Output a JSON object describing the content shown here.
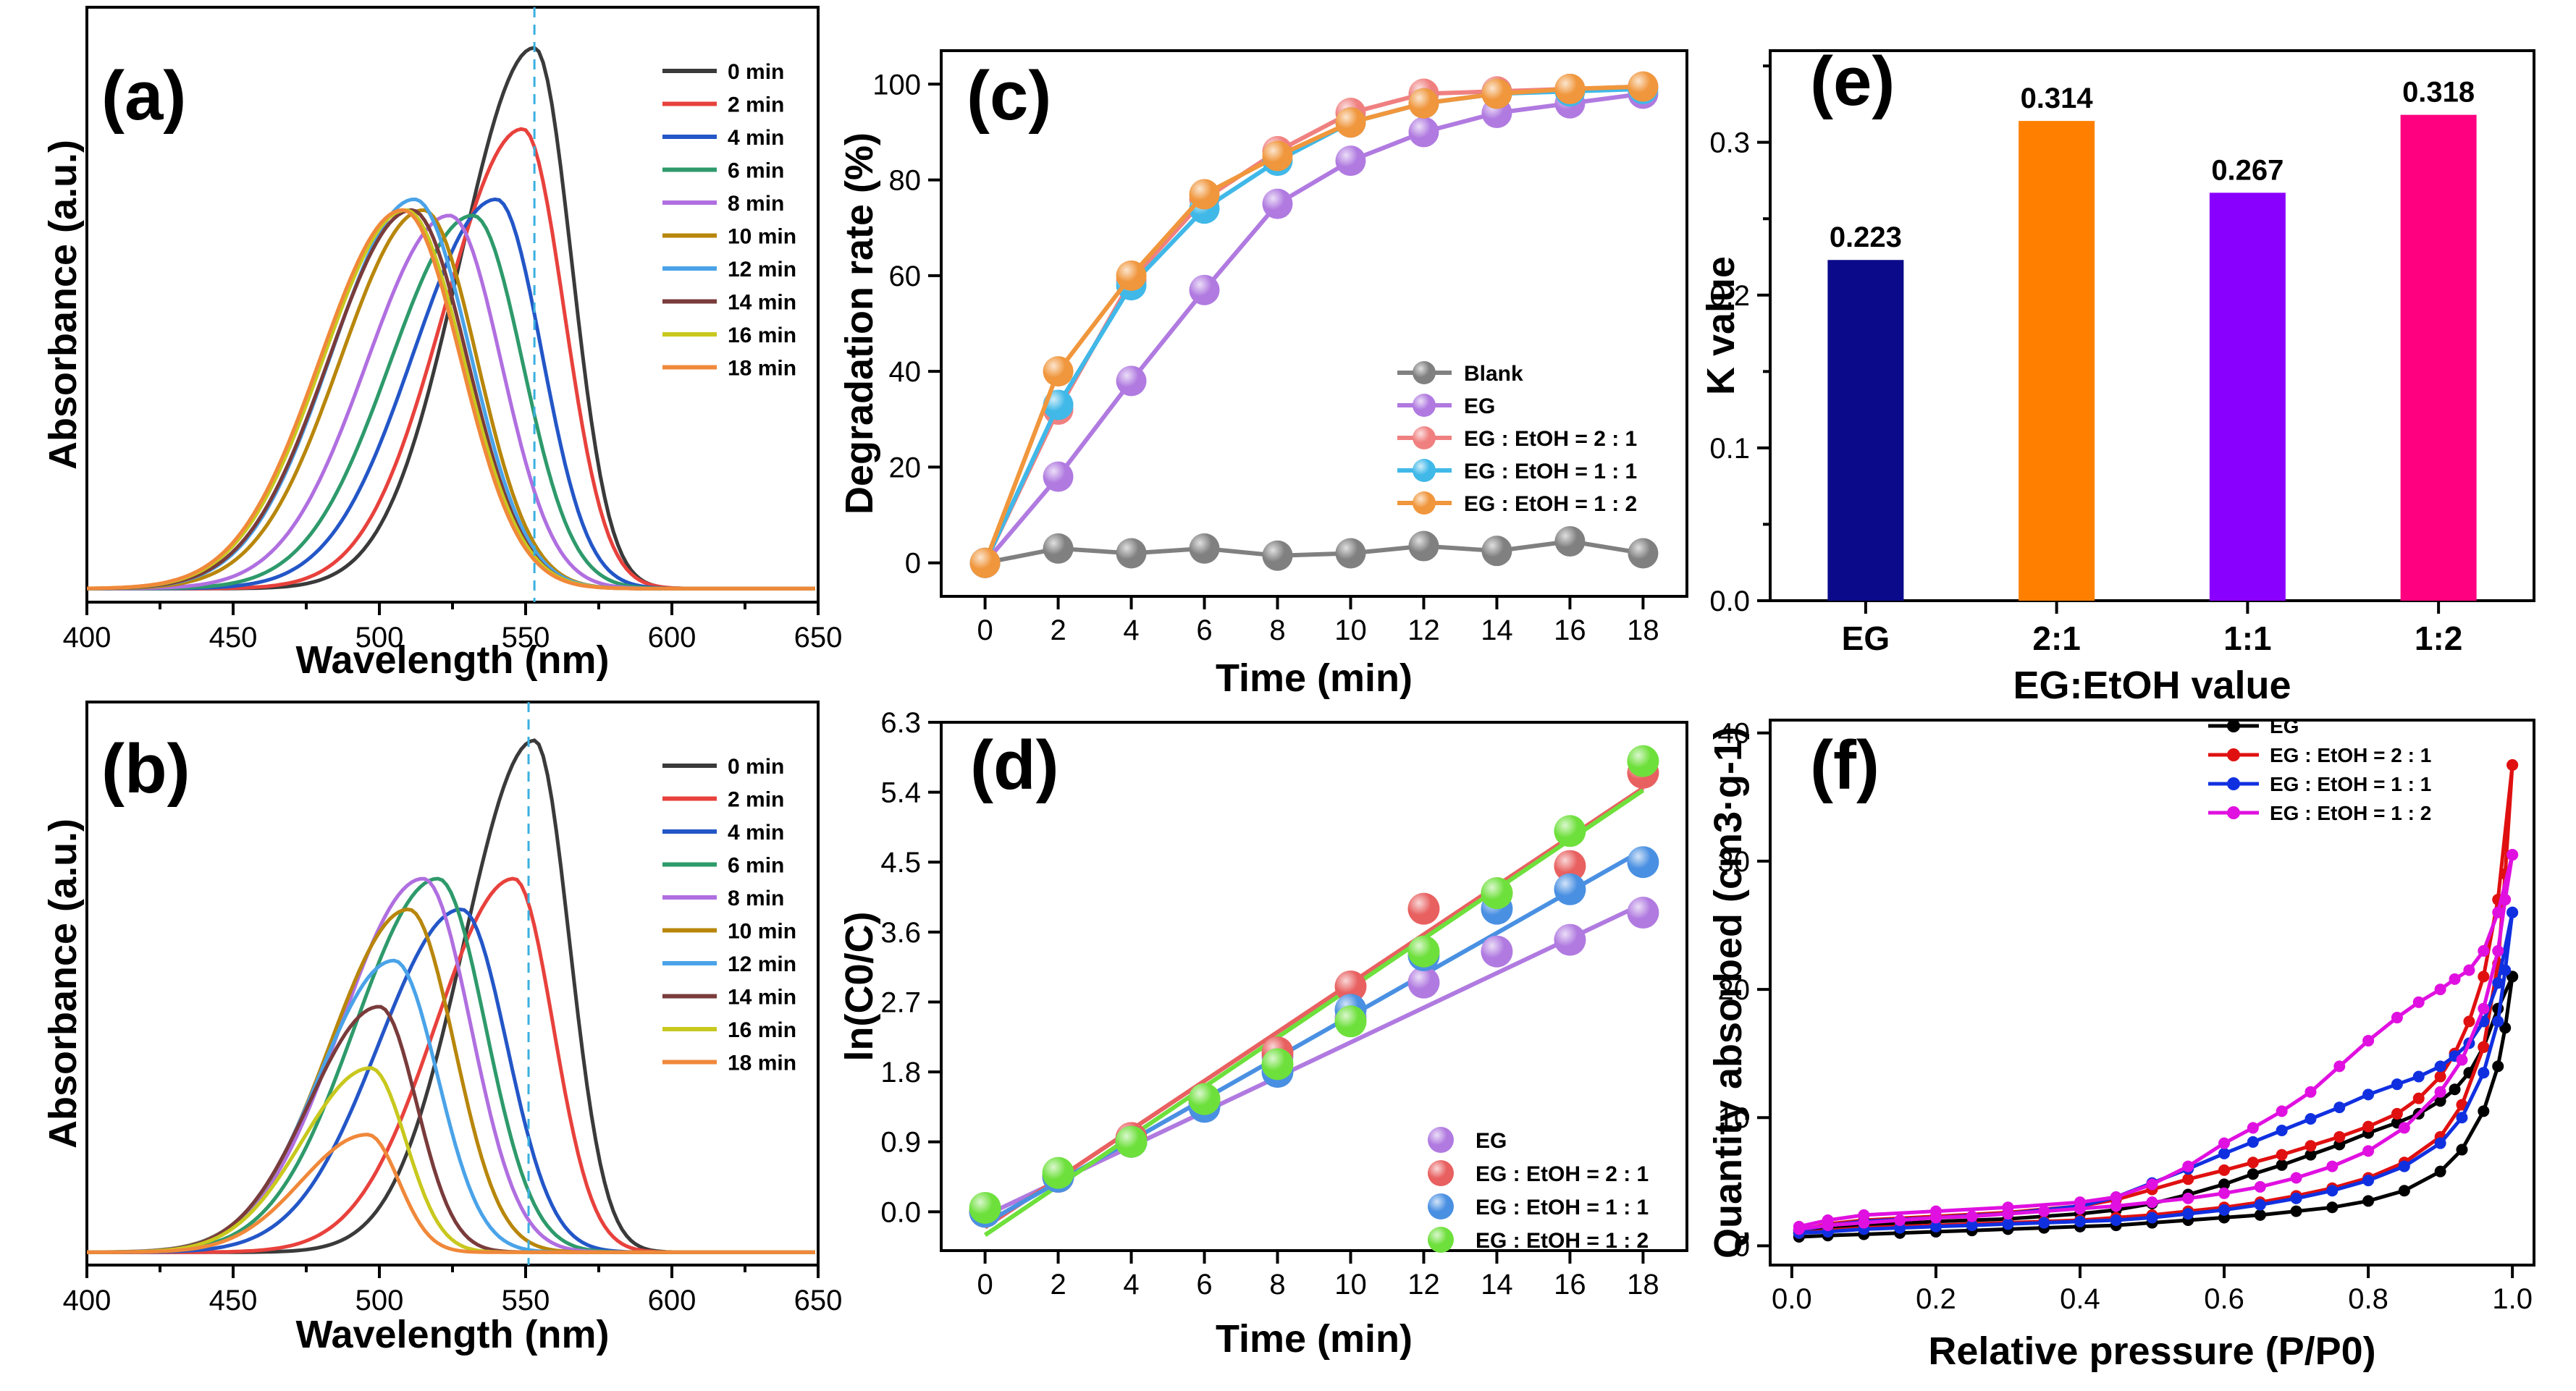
{
  "chart_data": [
    {
      "id": "a",
      "panel_label": "(a)",
      "type": "line",
      "xlabel": "Wavelength (nm)",
      "ylabel": "Absorbance (a.u.)",
      "xlim": [
        400,
        650
      ],
      "ylim": [
        0,
        1.1
      ],
      "xticks": [
        "400",
        "450",
        "500",
        "550",
        "600",
        "650"
      ],
      "marker_line_x": 553,
      "series": [
        {
          "name": "0 min",
          "color": "#3a3a3a",
          "peak": 553,
          "height": 1.0,
          "wl": 36,
          "wr": 18
        },
        {
          "name": "2 min",
          "color": "#e8413c",
          "peak": 549,
          "height": 0.85,
          "wl": 38,
          "wr": 20
        },
        {
          "name": "4 min",
          "color": "#2356c7",
          "peak": 540,
          "height": 0.72,
          "wl": 40,
          "wr": 22
        },
        {
          "name": "6 min",
          "color": "#2e9a6b",
          "peak": 532,
          "height": 0.69,
          "wl": 40,
          "wr": 24
        },
        {
          "name": "8 min",
          "color": "#b06fe0",
          "peak": 524,
          "height": 0.69,
          "wl": 40,
          "wr": 25
        },
        {
          "name": "10 min",
          "color": "#b8860b",
          "peak": 515,
          "height": 0.7,
          "wl": 40,
          "wr": 26
        },
        {
          "name": "12 min",
          "color": "#4aa3e8",
          "peak": 512,
          "height": 0.72,
          "wl": 40,
          "wr": 27
        },
        {
          "name": "14 min",
          "color": "#7a3b3b",
          "peak": 511,
          "height": 0.7,
          "wl": 40,
          "wr": 27
        },
        {
          "name": "16 min",
          "color": "#c8c81e",
          "peak": 509,
          "height": 0.7,
          "wl": 40,
          "wr": 28
        },
        {
          "name": "18 min",
          "color": "#f0883a",
          "peak": 508,
          "height": 0.7,
          "wl": 40,
          "wr": 28
        }
      ]
    },
    {
      "id": "b",
      "panel_label": "(b)",
      "type": "line",
      "xlabel": "Wavelength (nm)",
      "ylabel": "Absorbance (a.u.)",
      "xlim": [
        400,
        650
      ],
      "ylim": [
        0,
        1.1
      ],
      "xticks": [
        "400",
        "450",
        "500",
        "550",
        "600",
        "650"
      ],
      "marker_line_x": 551,
      "series": [
        {
          "name": "0 min",
          "color": "#3a3a3a",
          "peak": 553,
          "height": 1.0,
          "wl": 34,
          "wr": 17
        },
        {
          "name": "2 min",
          "color": "#e8413c",
          "peak": 546,
          "height": 0.73,
          "wl": 38,
          "wr": 19
        },
        {
          "name": "4 min",
          "color": "#2356c7",
          "peak": 528,
          "height": 0.67,
          "wl": 40,
          "wr": 22
        },
        {
          "name": "6 min",
          "color": "#2e9a6b",
          "peak": 520,
          "height": 0.73,
          "wl": 40,
          "wr": 23
        },
        {
          "name": "8 min",
          "color": "#b06fe0",
          "peak": 515,
          "height": 0.73,
          "wl": 40,
          "wr": 23
        },
        {
          "name": "10 min",
          "color": "#b8860b",
          "peak": 510,
          "height": 0.67,
          "wl": 38,
          "wr": 22
        },
        {
          "name": "12 min",
          "color": "#4aa3e8",
          "peak": 505,
          "height": 0.57,
          "wl": 36,
          "wr": 21
        },
        {
          "name": "14 min",
          "color": "#7a3b3b",
          "peak": 500,
          "height": 0.48,
          "wl": 34,
          "wr": 18
        },
        {
          "name": "16 min",
          "color": "#c8c81e",
          "peak": 497,
          "height": 0.36,
          "wl": 33,
          "wr": 17
        },
        {
          "name": "18 min",
          "color": "#f0883a",
          "peak": 496,
          "height": 0.23,
          "wl": 32,
          "wr": 15
        }
      ]
    },
    {
      "id": "c",
      "panel_label": "(c)",
      "type": "line",
      "xlabel": "Time (min)",
      "ylabel": "Degradation rate (%)",
      "xlim": [
        -1.2,
        19.2
      ],
      "ylim": [
        -7,
        107
      ],
      "xticks": [
        "0",
        "2",
        "4",
        "6",
        "8",
        "10",
        "12",
        "14",
        "16",
        "18"
      ],
      "yticks": [
        "0",
        "20",
        "40",
        "60",
        "80",
        "100"
      ],
      "x": [
        0,
        2,
        4,
        6,
        8,
        10,
        12,
        14,
        16,
        18
      ],
      "series": [
        {
          "name": "Blank",
          "color": "#808080",
          "values": [
            0,
            3,
            2,
            3,
            1.5,
            2,
            3.5,
            2.5,
            4.5,
            2
          ]
        },
        {
          "name": "EG",
          "color": "#b07ae0",
          "values": [
            0,
            18,
            38,
            57,
            75,
            84,
            90,
            94,
            96,
            98
          ]
        },
        {
          "name": "EG : EtOH = 2 : 1",
          "color": "#f08080",
          "values": [
            0,
            32,
            59,
            76,
            86,
            94,
            98,
            98.5,
            99,
            99.5
          ]
        },
        {
          "name": "EG : EtOH = 1 : 1",
          "color": "#40b8e8",
          "values": [
            0,
            33,
            58,
            74,
            84,
            92,
            96,
            98,
            98.5,
            99
          ]
        },
        {
          "name": "EG : EtOH = 1 : 2",
          "color": "#f0963c",
          "values": [
            0,
            40,
            60,
            77,
            85,
            92,
            96,
            98,
            99,
            99.5
          ]
        }
      ]
    },
    {
      "id": "d",
      "panel_label": "(d)",
      "type": "scatter",
      "xlabel": "Time (min)",
      "ylabel": "ln(C0/C)",
      "xlim": [
        -1.2,
        19.2
      ],
      "ylim": [
        -0.5,
        6.3
      ],
      "xticks": [
        "0",
        "2",
        "4",
        "6",
        "8",
        "10",
        "12",
        "14",
        "16",
        "18"
      ],
      "yticks": [
        "0.0",
        "0.9",
        "1.8",
        "2.7",
        "3.6",
        "4.5",
        "5.4",
        "6.3"
      ],
      "x": [
        0,
        2,
        4,
        6,
        8,
        10,
        12,
        14,
        16,
        18
      ],
      "series": [
        {
          "name": "EG",
          "color": "#b07ae0",
          "values": [
            0.0,
            0.45,
            0.9,
            1.4,
            2.0,
            2.5,
            2.95,
            3.35,
            3.5,
            3.85
          ],
          "fit": [
            -0.05,
            0.223
          ]
        },
        {
          "name": "EG : EtOH = 2 : 1",
          "color": "#e86060",
          "values": [
            0.0,
            0.45,
            0.95,
            1.45,
            2.05,
            2.9,
            3.9,
            4.1,
            4.45,
            5.65
          ],
          "fit": [
            -0.2,
            0.314
          ]
        },
        {
          "name": "EG : EtOH = 1 : 1",
          "color": "#4a90e2",
          "values": [
            0.0,
            0.45,
            0.9,
            1.35,
            1.8,
            2.6,
            3.3,
            3.9,
            4.15,
            4.5
          ],
          "fit": [
            -0.15,
            0.267
          ]
        },
        {
          "name": "EG : EtOH = 1 : 2",
          "color": "#6ee03c",
          "values": [
            0.05,
            0.5,
            0.9,
            1.45,
            1.9,
            2.45,
            3.35,
            4.1,
            4.9,
            5.8
          ],
          "fit": [
            -0.3,
            0.318
          ]
        }
      ]
    },
    {
      "id": "e",
      "panel_label": "(e)",
      "type": "bar",
      "xlabel": "EG:EtOH value",
      "ylabel": "K value",
      "ylim": [
        0,
        0.36
      ],
      "yticks": [
        "0.0",
        "0.1",
        "0.2",
        "0.3"
      ],
      "categories": [
        "EG",
        "2:1",
        "1:1",
        "1:2"
      ],
      "values": [
        0.223,
        0.314,
        0.267,
        0.318
      ],
      "data_labels": [
        "0.223",
        "0.314",
        "0.267",
        "0.318"
      ],
      "colors": [
        "#0a0a8a",
        "#ff8000",
        "#8a00ff",
        "#ff0080"
      ]
    },
    {
      "id": "f",
      "panel_label": "(f)",
      "type": "line",
      "xlabel": "Relative pressure (P/P0)",
      "ylabel": "Quantity absorbed (cm3·g-1)",
      "xlim": [
        -0.03,
        1.03
      ],
      "ylim": [
        -1.5,
        41
      ],
      "xticks": [
        "0.0",
        "0.2",
        "0.4",
        "0.6",
        "0.8",
        "1.0"
      ],
      "yticks": [
        "0",
        "10",
        "20",
        "30",
        "40"
      ],
      "series": [
        {
          "name": "EG",
          "color": "#000000",
          "ads_x": [
            0.01,
            0.05,
            0.1,
            0.15,
            0.2,
            0.25,
            0.3,
            0.35,
            0.4,
            0.45,
            0.5,
            0.55,
            0.6,
            0.65,
            0.7,
            0.75,
            0.8,
            0.85,
            0.9,
            0.93,
            0.96,
            0.98,
            0.99,
            1.0
          ],
          "ads_y": [
            0.7,
            0.8,
            0.9,
            1.0,
            1.1,
            1.2,
            1.3,
            1.4,
            1.5,
            1.6,
            1.8,
            2.0,
            2.2,
            2.4,
            2.7,
            3.0,
            3.5,
            4.3,
            5.8,
            7.5,
            10.5,
            14,
            17,
            21
          ],
          "des_x": [
            1.0,
            0.98,
            0.96,
            0.94,
            0.92,
            0.9,
            0.87,
            0.84,
            0.8,
            0.76,
            0.72,
            0.68,
            0.64,
            0.6,
            0.55,
            0.5,
            0.45,
            0.4,
            0.3,
            0.2,
            0.1,
            0.05,
            0.01
          ],
          "des_y": [
            21,
            18.5,
            15.5,
            13.5,
            12.2,
            11.3,
            10.3,
            9.6,
            8.8,
            7.9,
            7.1,
            6.3,
            5.6,
            4.8,
            4.0,
            3.3,
            2.8,
            2.5,
            2.1,
            1.9,
            1.6,
            1.3,
            1.0
          ]
        },
        {
          "name": "EG : EtOH = 2 : 1",
          "color": "#e01010",
          "ads_x": [
            0.01,
            0.05,
            0.1,
            0.15,
            0.2,
            0.25,
            0.3,
            0.35,
            0.4,
            0.45,
            0.5,
            0.55,
            0.6,
            0.65,
            0.7,
            0.75,
            0.8,
            0.85,
            0.9,
            0.93,
            0.96,
            0.98,
            0.99,
            1.0
          ],
          "ads_y": [
            1.0,
            1.2,
            1.4,
            1.5,
            1.6,
            1.7,
            1.8,
            1.9,
            2.0,
            2.2,
            2.4,
            2.7,
            3.0,
            3.4,
            3.9,
            4.5,
            5.3,
            6.5,
            8.5,
            11,
            15.5,
            22,
            29,
            37.5
          ],
          "des_x": [
            1.0,
            0.98,
            0.96,
            0.94,
            0.92,
            0.9,
            0.87,
            0.84,
            0.8,
            0.76,
            0.72,
            0.68,
            0.64,
            0.6,
            0.55,
            0.5,
            0.45,
            0.4,
            0.3,
            0.2,
            0.1,
            0.05,
            0.01
          ],
          "des_y": [
            37.5,
            27,
            21,
            17.5,
            15,
            13.2,
            11.5,
            10.3,
            9.3,
            8.5,
            7.8,
            7.1,
            6.5,
            5.9,
            5.2,
            4.4,
            3.6,
            3.1,
            2.6,
            2.3,
            2.0,
            1.7,
            1.2
          ]
        },
        {
          "name": "EG : EtOH = 1 : 1",
          "color": "#1030e0",
          "ads_x": [
            0.01,
            0.05,
            0.1,
            0.15,
            0.2,
            0.25,
            0.3,
            0.35,
            0.4,
            0.45,
            0.5,
            0.55,
            0.6,
            0.65,
            0.7,
            0.75,
            0.8,
            0.85,
            0.9,
            0.93,
            0.96,
            0.98,
            0.99,
            1.0
          ],
          "ads_y": [
            1.0,
            1.1,
            1.3,
            1.4,
            1.5,
            1.6,
            1.7,
            1.8,
            1.9,
            2.0,
            2.2,
            2.5,
            2.8,
            3.2,
            3.7,
            4.3,
            5.1,
            6.2,
            8.0,
            10,
            13.5,
            17.5,
            21.5,
            26
          ],
          "des_x": [
            1.0,
            0.98,
            0.96,
            0.94,
            0.92,
            0.9,
            0.87,
            0.84,
            0.8,
            0.76,
            0.72,
            0.68,
            0.64,
            0.6,
            0.55,
            0.5,
            0.45,
            0.4,
            0.3,
            0.2,
            0.1,
            0.05,
            0.01
          ],
          "des_y": [
            26,
            20.5,
            17.5,
            15.8,
            14.8,
            14.0,
            13.2,
            12.6,
            11.8,
            10.8,
            9.9,
            9.0,
            8.1,
            7.2,
            6.0,
            4.9,
            3.8,
            3.1,
            2.5,
            2.2,
            1.9,
            1.6,
            1.2
          ]
        },
        {
          "name": "EG : EtOH = 1 : 2",
          "color": "#e010e0",
          "ads_x": [
            0.01,
            0.05,
            0.1,
            0.15,
            0.2,
            0.25,
            0.3,
            0.35,
            0.4,
            0.45,
            0.5,
            0.55,
            0.6,
            0.65,
            0.7,
            0.75,
            0.8,
            0.85,
            0.9,
            0.93,
            0.96,
            0.98,
            0.99,
            1.0
          ],
          "ads_y": [
            1.3,
            1.6,
            1.8,
            2.0,
            2.2,
            2.3,
            2.5,
            2.7,
            2.9,
            3.1,
            3.4,
            3.7,
            4.1,
            4.6,
            5.3,
            6.2,
            7.4,
            9.2,
            12,
            14.5,
            18.5,
            23,
            27,
            30.5
          ],
          "des_x": [
            1.0,
            0.98,
            0.96,
            0.94,
            0.92,
            0.9,
            0.87,
            0.84,
            0.8,
            0.76,
            0.72,
            0.68,
            0.64,
            0.6,
            0.55,
            0.5,
            0.45,
            0.4,
            0.3,
            0.2,
            0.1,
            0.05,
            0.01
          ],
          "des_y": [
            30.5,
            26,
            23,
            21.5,
            20.8,
            20.0,
            19.0,
            17.8,
            16.0,
            14.0,
            12.0,
            10.5,
            9.2,
            8.0,
            6.2,
            4.8,
            3.8,
            3.4,
            3.0,
            2.7,
            2.4,
            2.0,
            1.5
          ]
        }
      ]
    }
  ]
}
